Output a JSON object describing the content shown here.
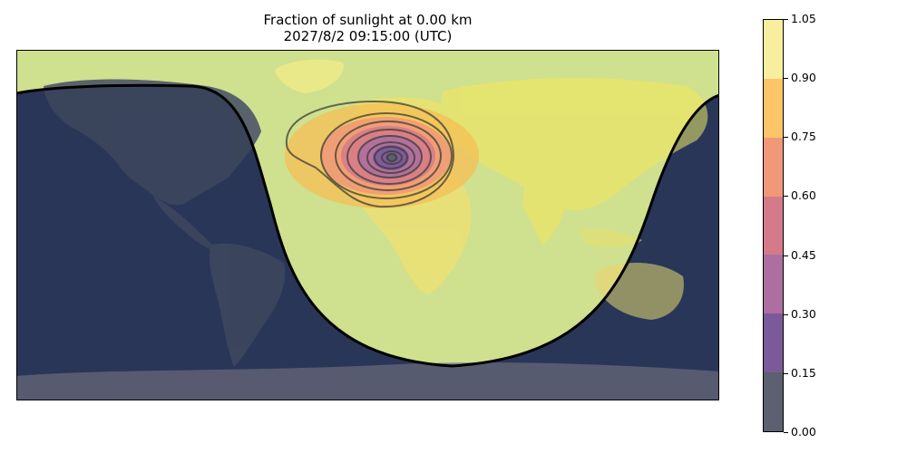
{
  "title": {
    "line1": "Fraction of sunlight at 0.00 km",
    "line2": "2027/8/2 09:15:00 (UTC)"
  },
  "colorbar": {
    "ticks": [
      "0.00",
      "0.15",
      "0.30",
      "0.45",
      "0.60",
      "0.75",
      "0.90",
      "1.05"
    ],
    "colors": [
      "#5d6070",
      "#7b5a99",
      "#ad6f9f",
      "#d47a8a",
      "#f09878",
      "#fcc668",
      "#f7ef9e"
    ]
  },
  "map_colors": {
    "night": "#2f3d5e",
    "day": "#cfe08e",
    "land_day": "#e2e57a",
    "land_night": "#4c5260",
    "ice": "#7d7b8a",
    "terminator": "#000000",
    "contour": "#3f3b36"
  }
}
